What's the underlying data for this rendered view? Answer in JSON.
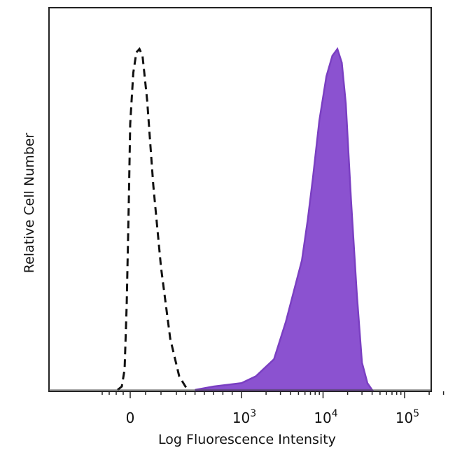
{
  "chart_data": {
    "type": "area",
    "xlabel": "Log Fluorescence Intensity",
    "ylabel": "Relative Cell Number",
    "x_scale": "biexponential",
    "xlim": [
      -500,
      200000
    ],
    "ylim": [
      0,
      1
    ],
    "x_ticks": [
      {
        "value": 0,
        "label": "0",
        "exp": ""
      },
      {
        "value": 1000,
        "label": "10",
        "exp": "3"
      },
      {
        "value": 10000,
        "label": "10",
        "exp": "4"
      },
      {
        "value": 100000,
        "label": "10",
        "exp": "5"
      }
    ],
    "series": [
      {
        "style": "dashed-outline",
        "color": "#111111",
        "points": [
          [
            -180,
            0
          ],
          [
            -120,
            0.01
          ],
          [
            -80,
            0.06
          ],
          [
            -50,
            0.25
          ],
          [
            -20,
            0.55
          ],
          [
            0,
            0.78
          ],
          [
            20,
            0.93
          ],
          [
            40,
            0.99
          ],
          [
            60,
            1.0
          ],
          [
            80,
            0.98
          ],
          [
            110,
            0.85
          ],
          [
            150,
            0.6
          ],
          [
            200,
            0.36
          ],
          [
            260,
            0.15
          ],
          [
            330,
            0.04
          ],
          [
            420,
            0.0
          ]
        ]
      },
      {
        "style": "filled",
        "color": "#7a3fc2",
        "fill": "#8b52d0",
        "points": [
          [
            500,
            0
          ],
          [
            700,
            0.01
          ],
          [
            1000,
            0.02
          ],
          [
            1500,
            0.04
          ],
          [
            2500,
            0.09
          ],
          [
            3500,
            0.2
          ],
          [
            4500,
            0.3
          ],
          [
            5500,
            0.38
          ],
          [
            6500,
            0.5
          ],
          [
            7500,
            0.62
          ],
          [
            9000,
            0.79
          ],
          [
            11000,
            0.92
          ],
          [
            13000,
            0.98
          ],
          [
            15000,
            1.0
          ],
          [
            17000,
            0.96
          ],
          [
            19000,
            0.84
          ],
          [
            22000,
            0.56
          ],
          [
            26000,
            0.28
          ],
          [
            30000,
            0.08
          ],
          [
            35000,
            0.02
          ],
          [
            40000,
            0.0
          ]
        ]
      }
    ]
  },
  "colors": {
    "frame": "#222222",
    "background": "#ffffff"
  }
}
